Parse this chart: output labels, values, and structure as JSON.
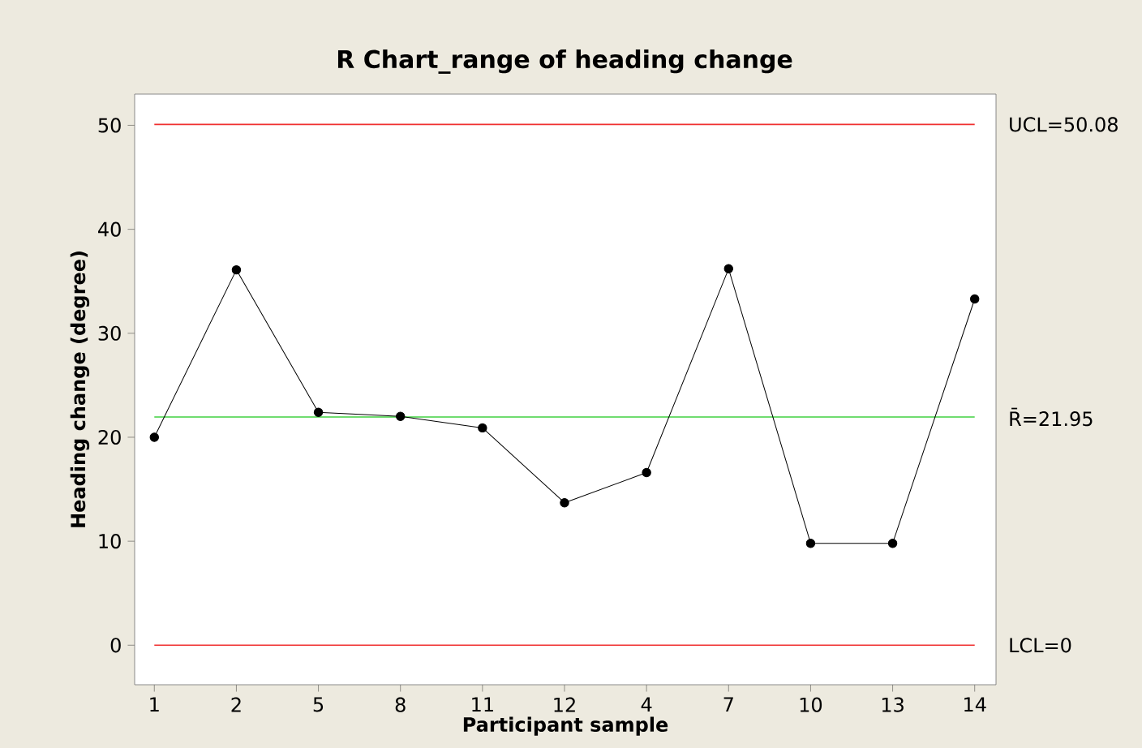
{
  "chart_data": {
    "type": "line",
    "title": "R Chart_range of heading change",
    "xlabel": "Participant sample",
    "ylabel": "Heading change (degree)",
    "categories": [
      "1",
      "2",
      "5",
      "8",
      "11",
      "12",
      "4",
      "7",
      "10",
      "13",
      "14"
    ],
    "series": [
      {
        "color": "#000000",
        "values": [
          20.0,
          36.1,
          22.4,
          22.0,
          20.9,
          13.7,
          16.6,
          36.2,
          9.8,
          9.8,
          33.3
        ]
      }
    ],
    "ylim": [
      -3.8,
      53
    ],
    "yticks": [
      0,
      10,
      20,
      30,
      40,
      50
    ],
    "ref_lines": [
      {
        "axis": "y",
        "value": 50.08,
        "label": "UCL=50.08",
        "color": "#f03030"
      },
      {
        "axis": "y",
        "value": 21.95,
        "label": "R̄=21.95",
        "color": "#40d040"
      },
      {
        "axis": "y",
        "value": 0,
        "label": "LCL=0",
        "color": "#f03030"
      }
    ],
    "marker": "circle",
    "line_style": "solid",
    "grid": false
  }
}
